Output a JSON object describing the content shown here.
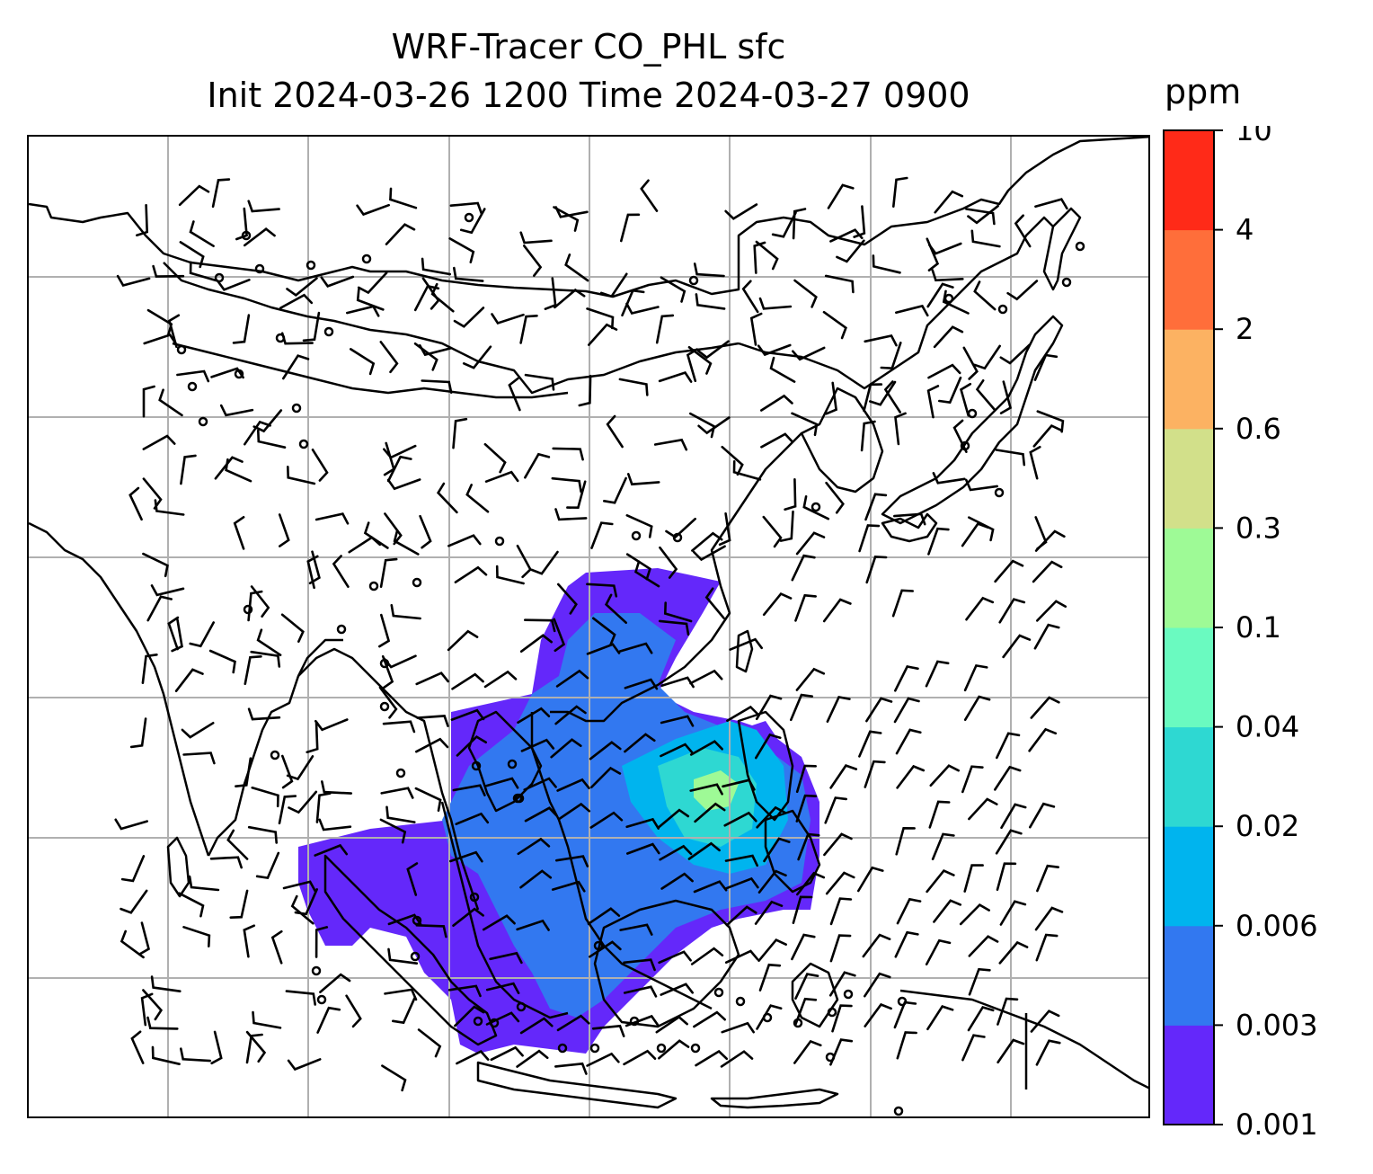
{
  "title": {
    "line1": "WRF-Tracer CO_PHL sfc",
    "line2": "Init 2024-03-26 1200 Time 2024-03-27 0900"
  },
  "colorbar": {
    "unit_label": "ppm",
    "levels": [
      "0.001",
      "0.003",
      "0.006",
      "0.02",
      "0.04",
      "0.1",
      "0.3",
      "0.6",
      "2",
      "4",
      "10"
    ],
    "colors": [
      "#6428fa",
      "#3278f0",
      "#00b4ee",
      "#2ed8d2",
      "#6afac0",
      "#9efa96",
      "#d2e08a",
      "#fcb262",
      "#ff6e3a",
      "#ff2a18"
    ]
  },
  "map": {
    "gridline_color": "#b0b0b0",
    "coastline_color": "#000000",
    "wind_barb_color": "#000000",
    "plume_colors": {
      "base": "#6428fa",
      "low": "#3278f0",
      "mid": "#00b4ee",
      "high": "#2ed8d2",
      "peak": "#9efa96"
    }
  }
}
